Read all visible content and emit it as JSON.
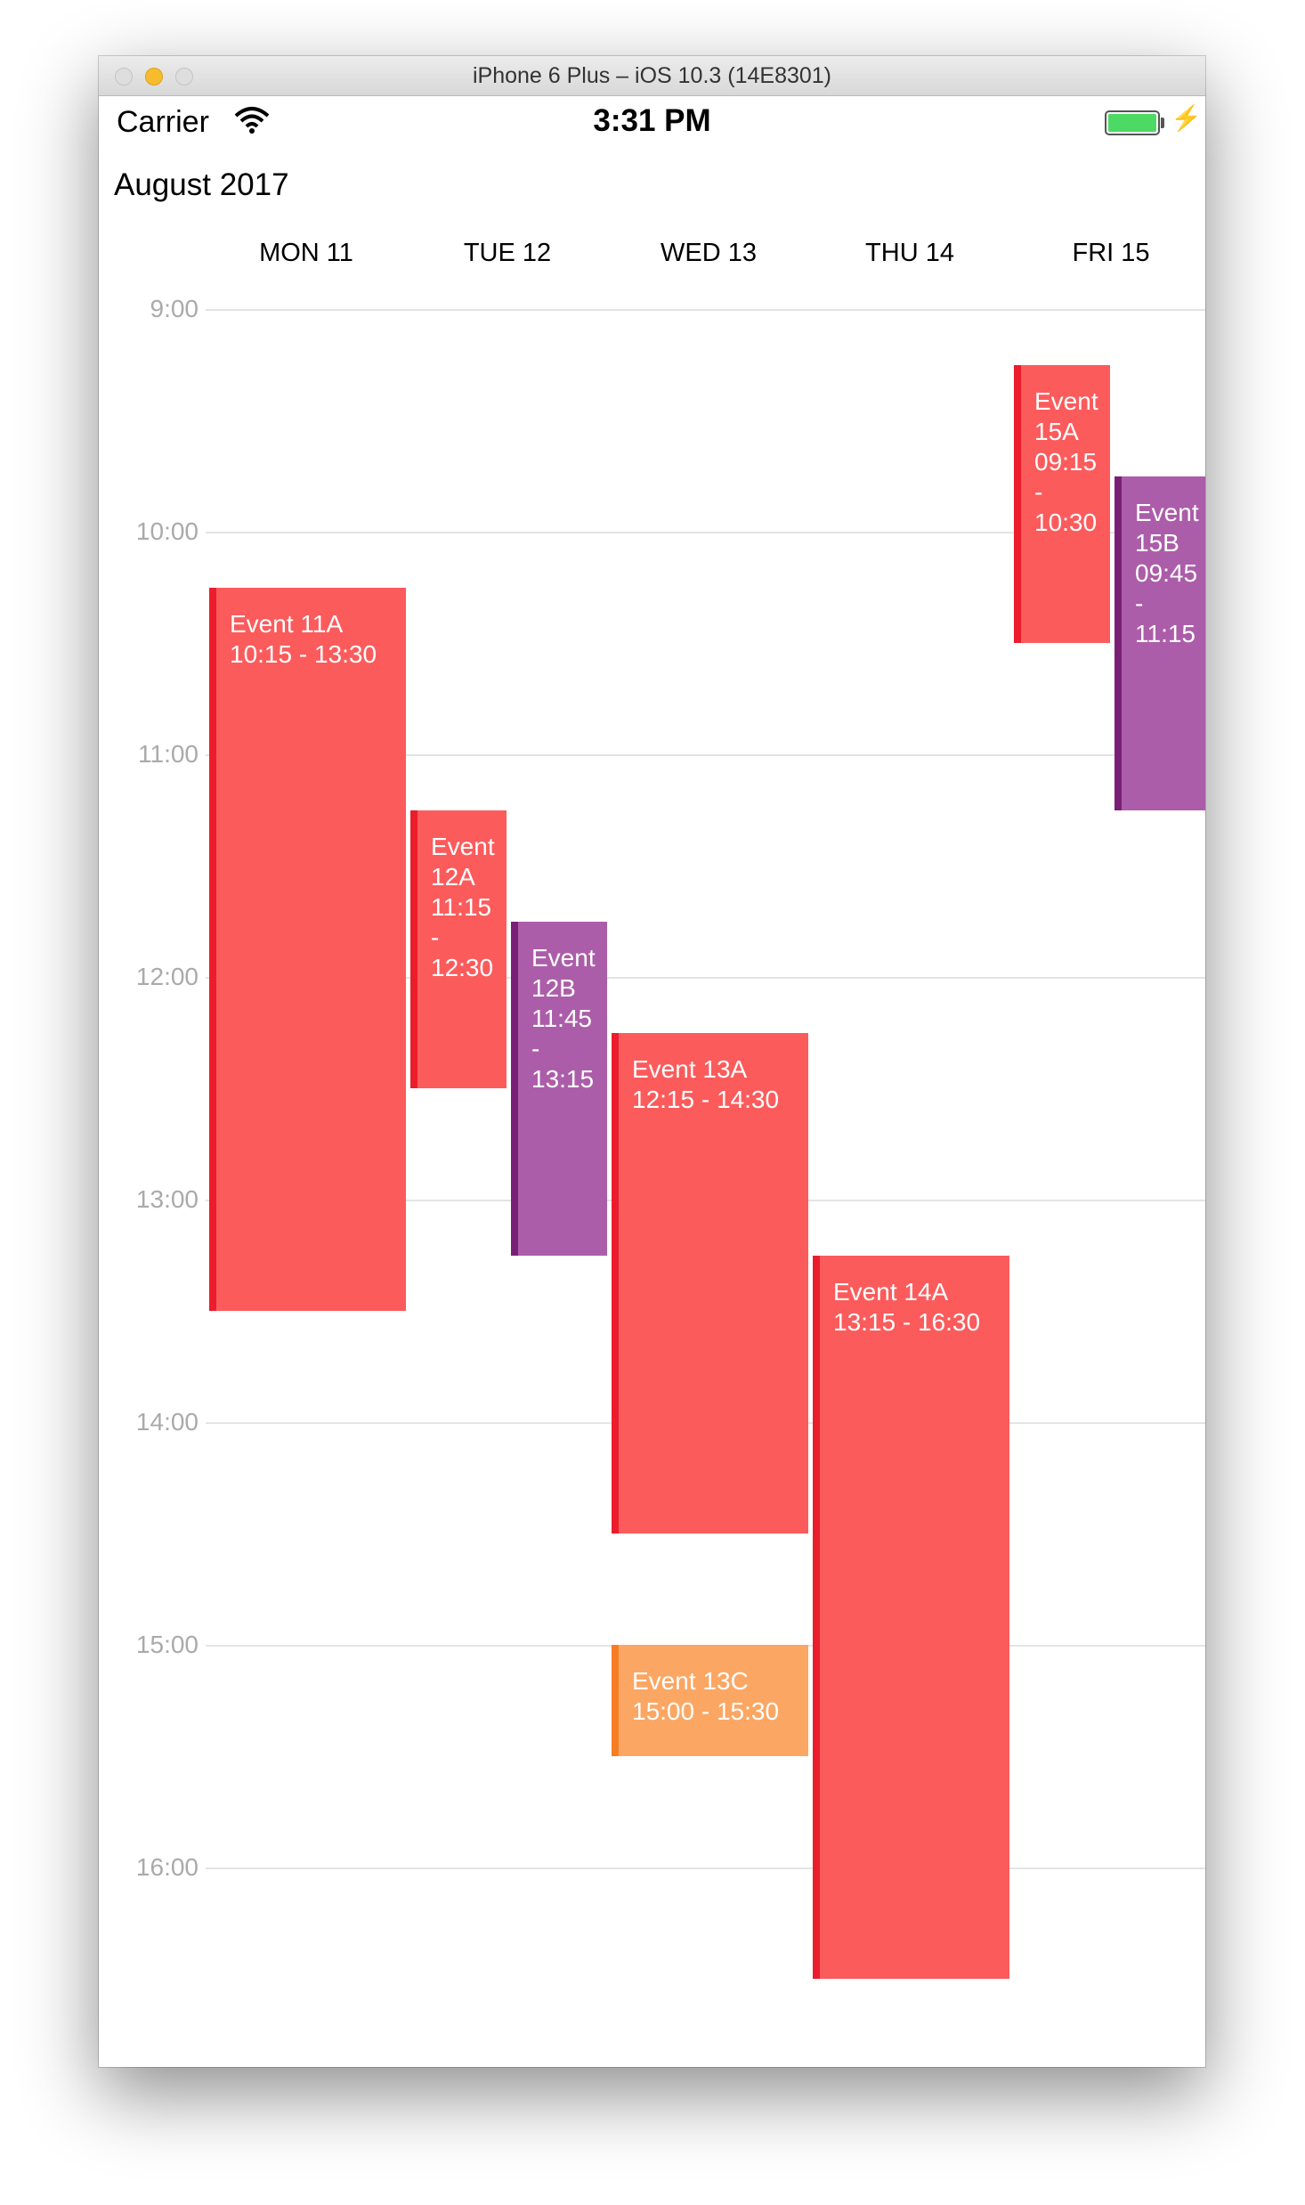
{
  "window": {
    "title": "iPhone 6 Plus – iOS 10.3 (14E8301)"
  },
  "status_bar": {
    "carrier": "Carrier",
    "time": "3:31 PM",
    "battery_color": "#4cd964"
  },
  "calendar": {
    "month_title": "August 2017",
    "days": [
      "MON 11",
      "TUE 12",
      "WED 13",
      "THU 14",
      "FRI 15"
    ],
    "hours": [
      "9:00",
      "10:00",
      "11:00",
      "12:00",
      "13:00",
      "14:00",
      "15:00",
      "16:00"
    ],
    "events": [
      {
        "name": "Event 11A",
        "time": "10:15 - 13:30",
        "day": 0,
        "start": 10.25,
        "end": 13.5,
        "color": "#fc5b5c",
        "col": 0,
        "cols": 1
      },
      {
        "name": "Event 12A",
        "time": "11:15 - 12:30",
        "day": 1,
        "start": 11.25,
        "end": 12.5,
        "color": "#fc5b5c",
        "col": 0,
        "cols": 2
      },
      {
        "name": "Event 12B",
        "time": "11:45 - 13:15",
        "day": 1,
        "start": 11.75,
        "end": 13.25,
        "color": "#ac5da9",
        "col": 1,
        "cols": 2
      },
      {
        "name": "Event 13A",
        "time": "12:15 - 14:30",
        "day": 2,
        "start": 12.25,
        "end": 14.5,
        "color": "#fc5b5c",
        "col": 0,
        "cols": 1
      },
      {
        "name": "Event 13C",
        "time": "15:00 - 15:30",
        "day": 2,
        "start": 15.0,
        "end": 15.5,
        "color": "#fba763",
        "col": 0,
        "cols": 1
      },
      {
        "name": "Event 14A",
        "time": "13:15 - 16:30",
        "day": 3,
        "start": 13.25,
        "end": 16.5,
        "color": "#fc5b5c",
        "col": 0,
        "cols": 1
      },
      {
        "name": "Event 15A",
        "time": "09:15 - 10:30",
        "day": 4,
        "start": 9.25,
        "end": 10.5,
        "color": "#fc5b5c",
        "col": 0,
        "cols": 2
      },
      {
        "name": "Event 15B",
        "time": "09:45 - 11:15",
        "day": 4,
        "start": 9.75,
        "end": 11.25,
        "color": "#ac5da9",
        "col": 1,
        "cols": 2
      }
    ]
  }
}
